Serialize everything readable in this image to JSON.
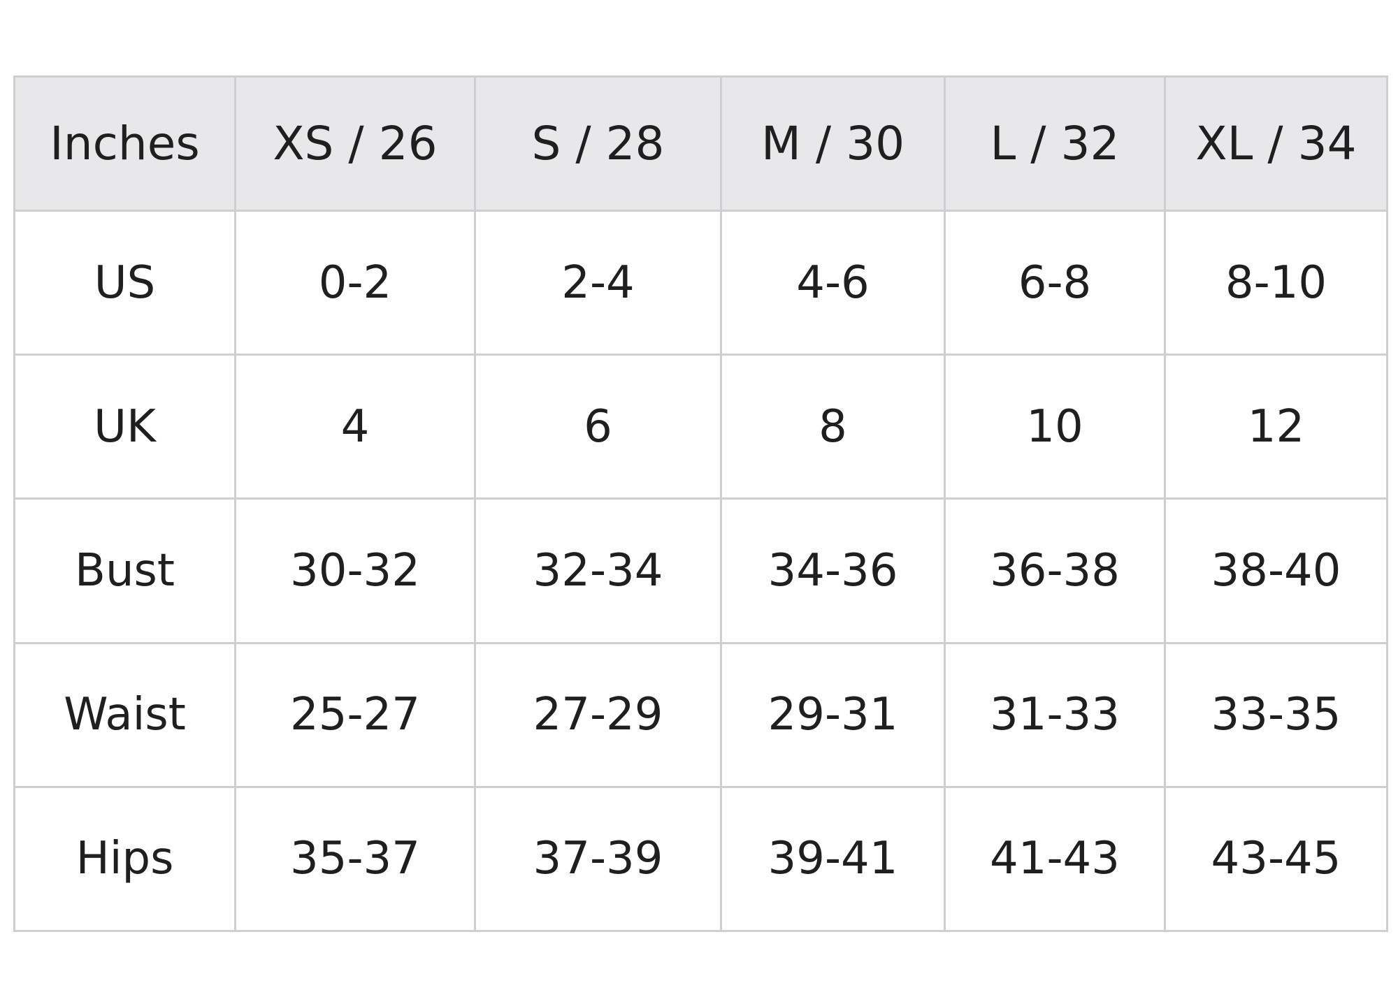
{
  "size_chart": {
    "corner_label": "Inches",
    "columns": [
      "XS / 26",
      "S / 28",
      "M / 30",
      "L / 32",
      "XL / 34"
    ],
    "rows": [
      {
        "label": "US",
        "values": [
          "0-2",
          "2-4",
          "4-6",
          "6-8",
          "8-10"
        ]
      },
      {
        "label": "UK",
        "values": [
          "4",
          "6",
          "8",
          "10",
          "12"
        ]
      },
      {
        "label": "Bust",
        "values": [
          "30-32",
          "32-34",
          "34-36",
          "36-38",
          "38-40"
        ]
      },
      {
        "label": "Waist",
        "values": [
          "25-27",
          "27-29",
          "29-31",
          "31-33",
          "33-35"
        ]
      },
      {
        "label": "Hips",
        "values": [
          "35-37",
          "37-39",
          "39-41",
          "41-43",
          "43-45"
        ]
      }
    ]
  },
  "colors": {
    "header_background": "#e8e8ea",
    "grid_line": "#cfcfcf",
    "text": "#1f1f1f"
  }
}
